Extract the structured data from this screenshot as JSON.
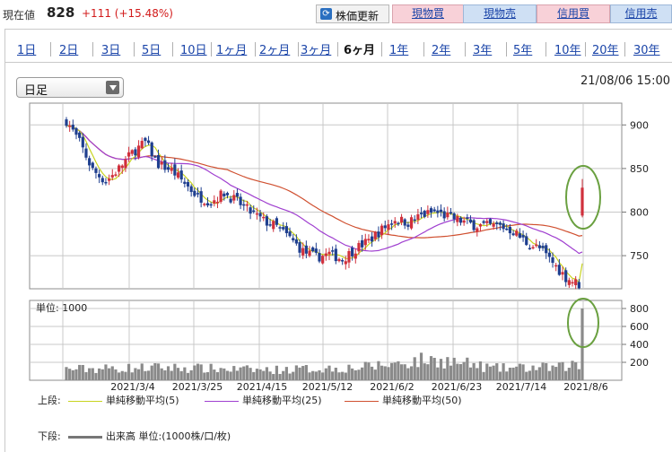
{
  "header": {
    "price_label": "現在値",
    "price_value": "828",
    "price_change": "+111 (+15.48%)",
    "refresh_label": "株価更新",
    "buttons": [
      "現物買",
      "現物売",
      "信用買",
      "信用売"
    ]
  },
  "tabs": {
    "items": [
      "1日",
      "2日",
      "3日",
      "5日",
      "10日",
      "1ヶ月",
      "2ヶ月",
      "3ヶ月",
      "6ヶ月",
      "1年",
      "2年",
      "3年",
      "5年",
      "10年",
      "20年",
      "30年"
    ],
    "active_index": 8
  },
  "controls": {
    "period_select": "日足",
    "timestamp": "21/08/06 15:00"
  },
  "price_chart": {
    "y_ticks": [
      "900",
      "850",
      "800",
      "750"
    ],
    "y_tick_values": [
      900,
      850,
      800,
      750
    ],
    "y_range": [
      712,
      925
    ]
  },
  "volume_chart": {
    "unit_label": "単位: 1000",
    "y_ticks": [
      "800",
      "600",
      "400",
      "200"
    ],
    "y_tick_values": [
      800,
      600,
      400,
      200
    ],
    "y_range": [
      0,
      890
    ]
  },
  "x_ticks": [
    "2021/3/4",
    "2021/3/25",
    "2021/4/15",
    "2021/5/12",
    "2021/6/2",
    "2021/6/23",
    "2021/7/14",
    "2021/8/6"
  ],
  "legend": {
    "upper_label": "上段:",
    "lower_label": "下段:",
    "items": [
      {
        "label": "単純移動平均(5)",
        "color": "#c8d420"
      },
      {
        "label": "単純移動平均(25)",
        "color": "#a040d0"
      },
      {
        "label": "単純移動平均(50)",
        "color": "#d05030"
      }
    ],
    "volume_label": "出来高 単位:(1000株/口/枚)"
  },
  "colors": {
    "up_candle": "#d0303c",
    "down_candle": "#1f3f8f",
    "highlight_circle": "#6aa040",
    "trade_buy_bg": "#f8d1d8",
    "trade_sell_bg": "#cfe0f4",
    "link": "#1a44a8"
  },
  "chart_data": {
    "type": "candlestick",
    "x_labels": [
      "2021/3/4",
      "2021/3/25",
      "2021/4/15",
      "2021/5/12",
      "2021/6/2",
      "2021/6/23",
      "2021/7/14",
      "2021/8/6"
    ],
    "price_anchors": [
      [
        0,
        905
      ],
      [
        4,
        880
      ],
      [
        8,
        848
      ],
      [
        12,
        835
      ],
      [
        16,
        850
      ],
      [
        20,
        868
      ],
      [
        24,
        880
      ],
      [
        28,
        855
      ],
      [
        32,
        848
      ],
      [
        36,
        833
      ],
      [
        40,
        818
      ],
      [
        44,
        812
      ],
      [
        48,
        822
      ],
      [
        52,
        812
      ],
      [
        56,
        800
      ],
      [
        60,
        790
      ],
      [
        64,
        783
      ],
      [
        68,
        770
      ],
      [
        72,
        755
      ],
      [
        76,
        748
      ],
      [
        80,
        752
      ],
      [
        84,
        746
      ],
      [
        88,
        758
      ],
      [
        92,
        767
      ],
      [
        96,
        780
      ],
      [
        100,
        792
      ],
      [
        104,
        788
      ],
      [
        108,
        796
      ],
      [
        112,
        800
      ],
      [
        116,
        795
      ],
      [
        120,
        790
      ],
      [
        124,
        785
      ],
      [
        128,
        784
      ],
      [
        132,
        784
      ],
      [
        136,
        778
      ],
      [
        140,
        765
      ],
      [
        144,
        758
      ],
      [
        148,
        742
      ],
      [
        152,
        725
      ],
      [
        156,
        717
      ],
      [
        157,
        828
      ]
    ],
    "volume_anchors": [
      [
        0,
        130
      ],
      [
        30,
        150
      ],
      [
        60,
        120
      ],
      [
        90,
        150
      ],
      [
        112,
        250
      ],
      [
        130,
        140
      ],
      [
        150,
        150
      ],
      [
        155,
        190
      ],
      [
        156,
        160
      ],
      [
        157,
        800
      ]
    ],
    "last_close": 828,
    "ma_periods": [
      5,
      25,
      50
    ]
  }
}
